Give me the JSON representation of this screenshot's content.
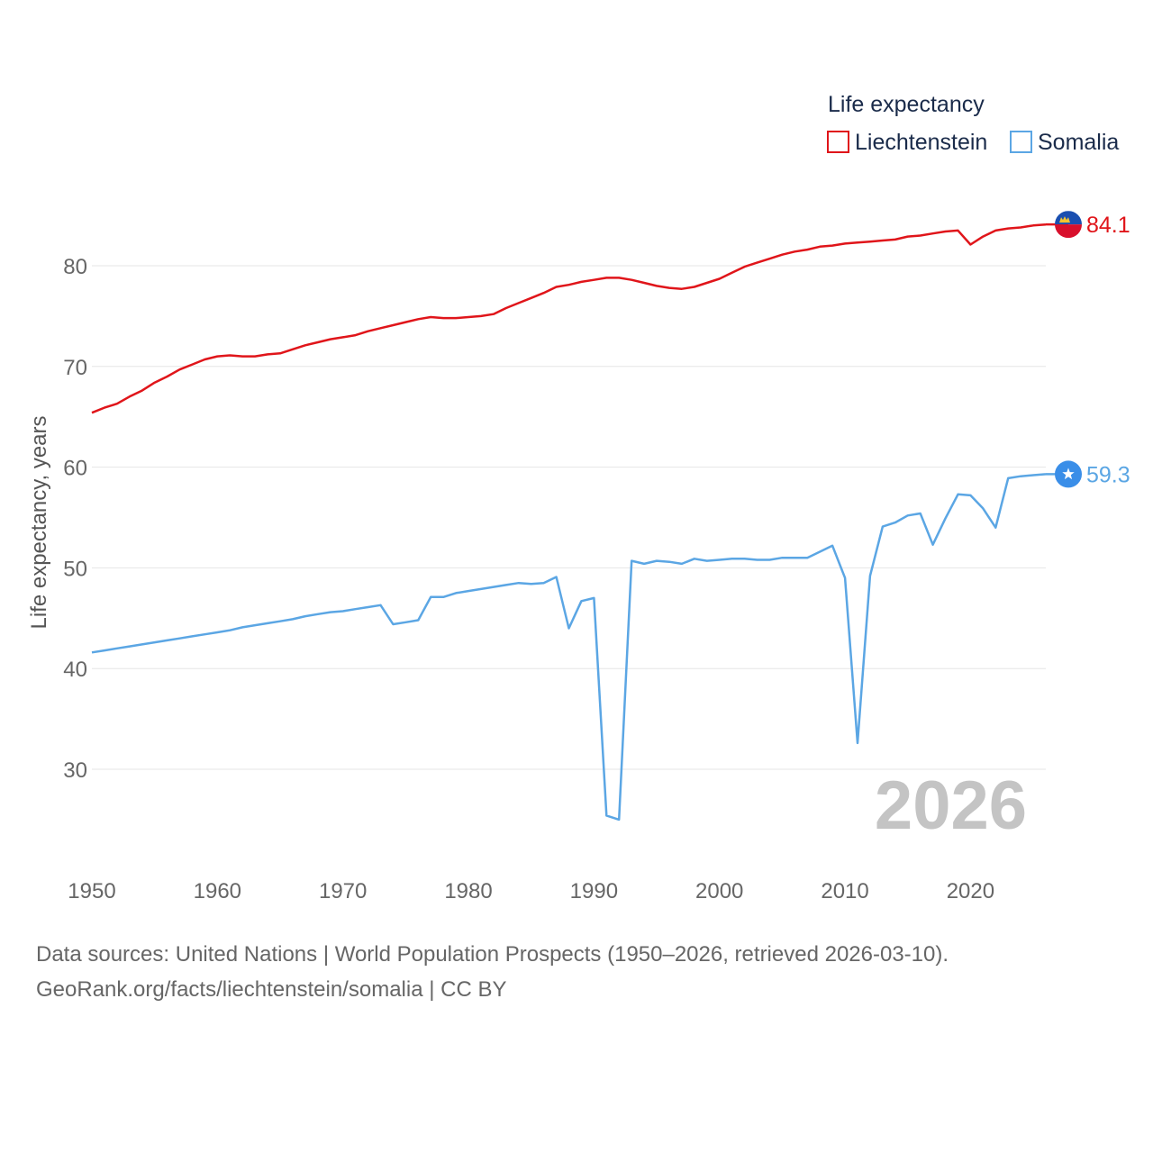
{
  "chart_data": {
    "type": "line",
    "legend_title": "Life expectancy",
    "ylabel": "Life expectancy, years",
    "xlabel": "",
    "xlim": [
      1950,
      2026
    ],
    "ylim": [
      22,
      88
    ],
    "x_ticks": [
      1950,
      1960,
      1970,
      1980,
      1990,
      2000,
      2010,
      2020
    ],
    "y_ticks": [
      30,
      40,
      50,
      60,
      70,
      80
    ],
    "grid": true,
    "legend_position": "top-right",
    "year_label": "2026",
    "years": [
      1950,
      1951,
      1952,
      1953,
      1954,
      1955,
      1956,
      1957,
      1958,
      1959,
      1960,
      1961,
      1962,
      1963,
      1964,
      1965,
      1966,
      1967,
      1968,
      1969,
      1970,
      1971,
      1972,
      1973,
      1974,
      1975,
      1976,
      1977,
      1978,
      1979,
      1980,
      1981,
      1982,
      1983,
      1984,
      1985,
      1986,
      1987,
      1988,
      1989,
      1990,
      1991,
      1992,
      1993,
      1994,
      1995,
      1996,
      1997,
      1998,
      1999,
      2000,
      2001,
      2002,
      2003,
      2004,
      2005,
      2006,
      2007,
      2008,
      2009,
      2010,
      2011,
      2012,
      2013,
      2014,
      2015,
      2016,
      2017,
      2018,
      2019,
      2020,
      2021,
      2022,
      2023,
      2024,
      2025,
      2026
    ],
    "series": [
      {
        "name": "Liechtenstein",
        "color": "#e0151a",
        "end_label": "84.1",
        "flag_icon": "liechtenstein-flag-icon",
        "values": [
          65.4,
          65.9,
          66.3,
          67.0,
          67.6,
          68.4,
          69.0,
          69.7,
          70.2,
          70.7,
          71.0,
          71.1,
          71.0,
          71.0,
          71.2,
          71.3,
          71.7,
          72.1,
          72.4,
          72.7,
          72.9,
          73.1,
          73.5,
          73.8,
          74.1,
          74.4,
          74.7,
          74.9,
          74.8,
          74.8,
          74.9,
          75.0,
          75.2,
          75.8,
          76.3,
          76.8,
          77.3,
          77.9,
          78.1,
          78.4,
          78.6,
          78.8,
          78.8,
          78.6,
          78.3,
          78.0,
          77.8,
          77.7,
          77.9,
          78.3,
          78.7,
          79.3,
          79.9,
          80.3,
          80.7,
          81.1,
          81.4,
          81.6,
          81.9,
          82.0,
          82.2,
          82.3,
          82.4,
          82.5,
          82.6,
          82.9,
          83.0,
          83.2,
          83.4,
          83.5,
          82.1,
          82.9,
          83.5,
          83.7,
          83.8,
          84.0,
          84.1
        ]
      },
      {
        "name": "Somalia",
        "color": "#5ba6e4",
        "end_label": "59.3",
        "flag_icon": "somalia-flag-icon",
        "values": [
          41.6,
          41.8,
          42.0,
          42.2,
          42.4,
          42.6,
          42.8,
          43.0,
          43.2,
          43.4,
          43.6,
          43.8,
          44.1,
          44.3,
          44.5,
          44.7,
          44.9,
          45.2,
          45.4,
          45.6,
          45.7,
          45.9,
          46.1,
          46.3,
          44.4,
          44.6,
          44.8,
          47.1,
          47.1,
          47.5,
          47.7,
          47.9,
          48.1,
          48.3,
          48.5,
          48.4,
          48.5,
          49.1,
          44.0,
          46.7,
          47.0,
          25.4,
          25.0,
          50.7,
          50.4,
          50.7,
          50.6,
          50.4,
          50.9,
          50.7,
          50.8,
          50.9,
          50.9,
          50.8,
          50.8,
          51.0,
          51.0,
          51.0,
          51.6,
          52.2,
          49.0,
          32.6,
          49.2,
          54.1,
          54.5,
          55.2,
          55.4,
          52.3,
          54.9,
          57.3,
          57.2,
          55.9,
          54.0,
          58.9,
          59.1,
          59.2,
          59.3
        ]
      }
    ]
  },
  "footer": {
    "sources_line": "Data sources: United Nations | World Population Prospects (1950–2026, retrieved 2026-03-10).",
    "credit_line": "GeoRank.org/facts/liechtenstein/somalia | CC BY"
  }
}
